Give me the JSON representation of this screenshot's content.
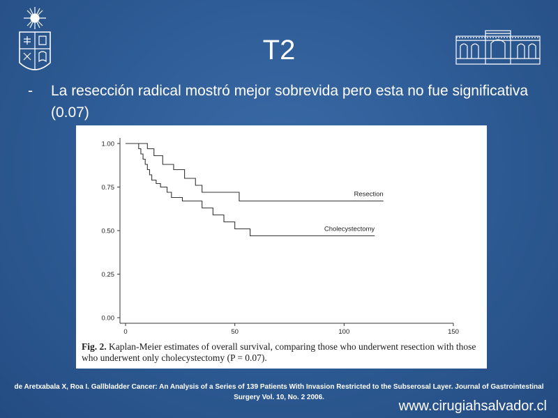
{
  "slide": {
    "title": "T2",
    "bullet_dash": "-",
    "bullet_text": "La resección radical mostró mejor sobrevida pero esta no fue significativa (0.07)",
    "reference": "de Aretxabala X, Roa I. Gallbladder Cancer: An Analysis of a Series of 139 Patients With Invasion Restricted to the Subserosal Layer. Journal of Gastrointestinal Surgery Vol. 10, No. 2 2006.",
    "website": "www.cirugiahsalvador.cl"
  },
  "caption": {
    "label": "Fig. 2.",
    "text": "Kaplan-Meier estimates of overall survival, comparing those who underwent resection with those who underwent only cholecystectomy (P = 0.07)."
  },
  "chart_data": {
    "type": "line",
    "title": "",
    "xlabel": "",
    "ylabel": "",
    "xlim": [
      0,
      150
    ],
    "ylim": [
      0,
      1
    ],
    "x_ticks": [
      0,
      50,
      100,
      150
    ],
    "y_ticks": [
      0.0,
      0.25,
      0.5,
      0.75,
      1.0
    ],
    "y_tick_labels": [
      "0.00",
      "0.25",
      "0.50",
      "0.75",
      "1.00"
    ],
    "x_tick_labels": [
      "0",
      "50",
      "100",
      "150"
    ],
    "grid": false,
    "series": [
      {
        "name": "Resection",
        "step": true,
        "x": [
          0,
          3,
          10,
          13,
          17,
          22,
          27,
          32,
          35,
          40,
          52,
          118
        ],
        "y": [
          1.0,
          1.0,
          0.97,
          0.93,
          0.88,
          0.85,
          0.8,
          0.76,
          0.72,
          0.72,
          0.67,
          0.67
        ]
      },
      {
        "name": "Cholecystectomy",
        "step": true,
        "x": [
          0,
          5,
          6,
          7,
          8,
          9,
          10,
          11,
          12,
          14,
          16,
          19,
          21,
          24,
          26,
          35,
          40,
          45,
          50,
          54,
          57,
          114
        ],
        "y": [
          1.0,
          1.0,
          0.97,
          0.94,
          0.91,
          0.88,
          0.85,
          0.82,
          0.79,
          0.77,
          0.75,
          0.72,
          0.69,
          0.69,
          0.67,
          0.63,
          0.59,
          0.55,
          0.51,
          0.51,
          0.47,
          0.47
        ]
      }
    ]
  }
}
